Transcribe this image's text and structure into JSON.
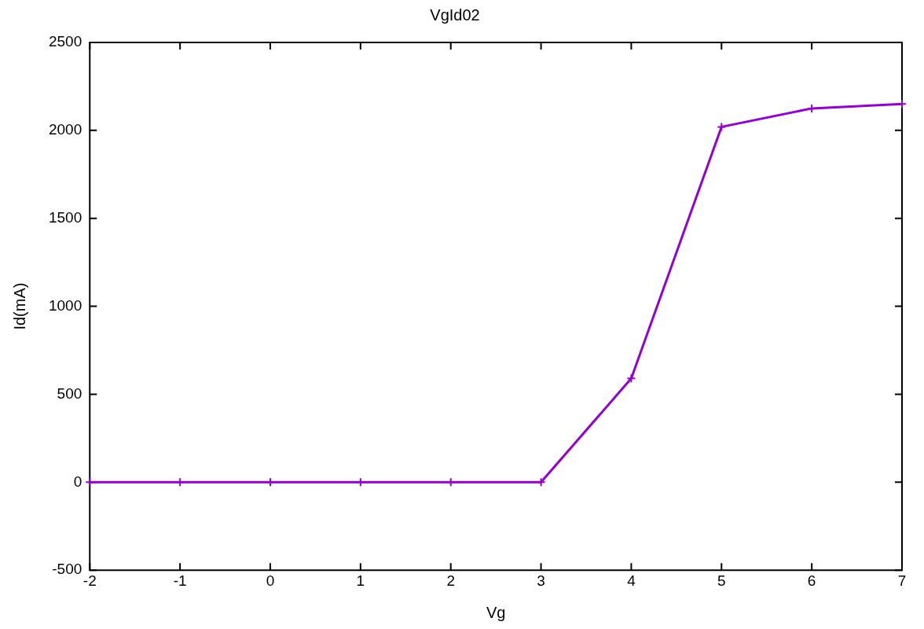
{
  "chart_data": {
    "type": "line",
    "title": "VgId02",
    "xlabel": "Vg",
    "ylabel": "Id(mA)",
    "x": [
      -2,
      -1,
      0,
      1,
      2,
      3,
      4,
      5,
      6,
      7
    ],
    "series": [
      {
        "color": "#9400d3",
        "values": [
          0,
          0,
          0,
          0,
          0,
          0,
          590,
          2020,
          2125,
          2150
        ]
      }
    ],
    "xlim": [
      -2,
      7
    ],
    "xticks": [
      -2,
      -1,
      0,
      1,
      2,
      3,
      4,
      5,
      6,
      7
    ],
    "ylim": [
      -500,
      2500
    ],
    "yticks": [
      -500,
      0,
      500,
      1000,
      1500,
      2000,
      2500
    ],
    "grid": false,
    "legend": false,
    "marker": "cross",
    "line_style": "solid"
  }
}
